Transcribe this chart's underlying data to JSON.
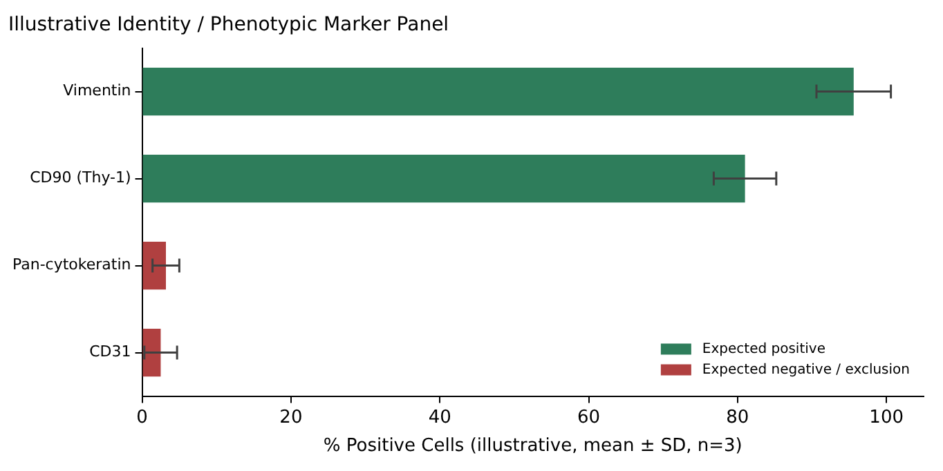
{
  "chart_data": {
    "type": "bar",
    "orientation": "horizontal",
    "stacked": true,
    "title": "Illustrative Identity / Phenotypic Marker Panel",
    "xlabel": "% Positive Cells (illustrative, mean ± SD, n=3)",
    "categories": [
      "Vimentin",
      "CD90 (Thy-1)",
      "Pan-cytokeratin",
      "CD31"
    ],
    "series": [
      {
        "name": "Expected positive",
        "color": "#2e7d5b",
        "values": [
          95.6,
          81.0,
          null,
          null
        ],
        "errors": [
          5.0,
          4.2,
          null,
          null
        ]
      },
      {
        "name": "Expected negative / exclusion",
        "color": "#b04040",
        "values": [
          null,
          null,
          3.2,
          2.5
        ],
        "errors": [
          null,
          null,
          1.8,
          2.2
        ]
      }
    ],
    "xlim": [
      0,
      105
    ],
    "xticks": [
      0,
      20,
      40,
      60,
      80,
      100
    ],
    "grid": false,
    "legend": "bottom right"
  }
}
